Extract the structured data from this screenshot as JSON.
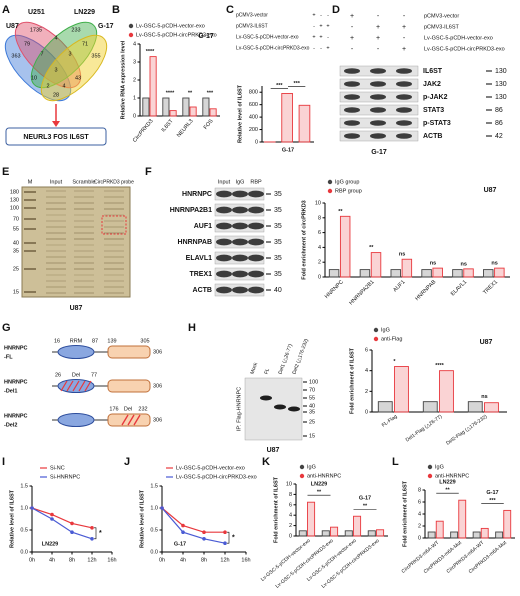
{
  "panel_labels": [
    "A",
    "B",
    "C",
    "D",
    "E",
    "F",
    "G",
    "H",
    "I",
    "J",
    "K",
    "L"
  ],
  "venn": {
    "sets": [
      "U87",
      "U251",
      "LN229",
      "G-17"
    ],
    "counts": [
      363,
      1735,
      233,
      355,
      79,
      4,
      71,
      10,
      43,
      28,
      7,
      3,
      4,
      2,
      3
    ],
    "result": "NEURL3 FOS IL6ST"
  },
  "blot_d": {
    "conditions": [
      {
        "label": "pCMV3-vector",
        "signs": [
          "+",
          "-",
          "-"
        ]
      },
      {
        "label": "pCMV3-IL6ST",
        "signs": [
          "-",
          "+",
          "+"
        ]
      },
      {
        "label": "Lv-GSC-5-pCDH-vector-exo",
        "signs": [
          "+",
          "+",
          "-"
        ]
      },
      {
        "label": "Lv-GSC-5-pCDH-circPRKD3-exo",
        "signs": [
          "-",
          "-",
          "+"
        ]
      }
    ],
    "rows": [
      {
        "name": "IL6ST",
        "marker": 130
      },
      {
        "name": "JAK2",
        "marker": 130
      },
      {
        "name": "p-JAK2",
        "marker": 130
      },
      {
        "name": "STAT3",
        "marker": 86
      },
      {
        "name": "p-STAT3",
        "marker": 86
      },
      {
        "name": "ACTB",
        "marker": 42
      }
    ],
    "caption": "G-17"
  },
  "gel_e": {
    "lanes": [
      "M",
      "Input",
      "Scramble",
      "CircPRKD3 probe"
    ],
    "markers": [
      180,
      130,
      100,
      70,
      55,
      40,
      35,
      25,
      15
    ],
    "caption": "U87"
  },
  "blot_f": {
    "lanes": [
      "Input",
      "IgG",
      "RBP"
    ],
    "rows": [
      {
        "name": "HNRNPC",
        "marker": 35
      },
      {
        "name": "HNRNPA2B1",
        "marker": 35
      },
      {
        "name": "AUF1",
        "marker": 35
      },
      {
        "name": "HNRNPAB",
        "marker": 35
      },
      {
        "name": "ELAVL1",
        "marker": 35
      },
      {
        "name": "TREX1",
        "marker": 35
      },
      {
        "name": "ACTB",
        "marker": 40
      }
    ]
  },
  "domains_g": {
    "constructs": [
      {
        "name": [
          "HNRNPC",
          "-FL"
        ],
        "labels": [
          16,
          "RRM",
          87,
          139,
          305
        ],
        "end": 306
      },
      {
        "name": [
          "HNRNPC",
          "-Del1"
        ],
        "labels": [
          26,
          "Del",
          77
        ],
        "end": 306
      },
      {
        "name": [
          "HNRNPC",
          "-Del2"
        ],
        "labels": [
          176,
          "Del",
          232
        ],
        "end": 306
      }
    ]
  },
  "blot_h": {
    "lanes": [
      "Mock",
      "FL",
      "Del1 (△26-77)",
      "Del2 (△176-232)"
    ],
    "side_label": "IP: Flag-HNRNPC",
    "markers": [
      100,
      70,
      55,
      40,
      35,
      25,
      15
    ],
    "caption": "U87"
  },
  "chart_data": [
    {
      "type": "bar",
      "title": "G-17",
      "ylabel": "Relative RNA expression level",
      "categories": [
        "CircPRKD3",
        "IL6ST",
        "NEURL3",
        "FOS"
      ],
      "series": [
        {
          "name": "Lv-GSC-5-pCDH-vector-exo",
          "color": "#444444",
          "values": [
            1,
            1,
            1,
            1
          ]
        },
        {
          "name": "Lv-GSC-5-pCDH-circPRKD3-exo",
          "color": "#e8383d",
          "values": [
            3.3,
            0.3,
            0.5,
            0.4
          ]
        }
      ],
      "ylim": [
        0,
        4
      ],
      "yticks": [
        0,
        1,
        2,
        3,
        4
      ],
      "significance": [
        "****",
        "****",
        "**",
        "***"
      ]
    },
    {
      "type": "bar",
      "ylabel": "Relative level of IL6ST",
      "xlabel": "G-17",
      "categories": [
        null,
        null,
        null
      ],
      "values": [
        1,
        780,
        590
      ],
      "color": "#e8383d",
      "ylim": [
        0,
        900
      ],
      "yticks": [
        0,
        200,
        400,
        600,
        800
      ],
      "significance": [
        "***",
        "***"
      ],
      "conditions": [
        {
          "label": "pCMV3-vector",
          "signs": [
            "+",
            "-",
            "-"
          ]
        },
        {
          "label": "pCMV3-IL6ST",
          "signs": [
            "-",
            "+",
            "+"
          ]
        },
        {
          "label": "Lv-GSC-5-pCDH-vector-exo",
          "signs": [
            "+",
            "+",
            "-"
          ]
        },
        {
          "label": "Lv-GSC-5-pCDH-circPRKD3-exo",
          "signs": [
            "-",
            "-",
            "+"
          ]
        }
      ]
    },
    {
      "type": "bar",
      "title": "U87",
      "ylabel": "Fold enrichment of circPRKD3",
      "categories": [
        "HNRNPC",
        "HNRNPA2B1",
        "AUF1",
        "HNRNPAB",
        "ELAVL1",
        "TREX1"
      ],
      "series": [
        {
          "name": "IgG group",
          "color": "#444444",
          "values": [
            1,
            1,
            1,
            1,
            1,
            1
          ]
        },
        {
          "name": "RBP group",
          "color": "#e8383d",
          "values": [
            8.2,
            3.3,
            2.4,
            1.2,
            1.1,
            1.2
          ]
        }
      ],
      "ylim": [
        0,
        10
      ],
      "yticks": [
        0,
        2,
        4,
        6,
        8,
        10
      ],
      "significance": [
        "**",
        "**",
        "ns",
        "ns",
        "ns",
        "ns"
      ]
    },
    {
      "type": "bar",
      "title": "U87",
      "ylabel": "Fold enrichment of IL6ST",
      "categories": [
        "FL-Flag",
        "Del1-Flag (△26-77)",
        "Del2-Flag (△176-232)"
      ],
      "series": [
        {
          "name": "IgG",
          "color": "#444444",
          "values": [
            1,
            1,
            1
          ]
        },
        {
          "name": "anti-Flag",
          "color": "#e8383d",
          "values": [
            4.4,
            4.0,
            0.9
          ]
        }
      ],
      "ylim": [
        0,
        6
      ],
      "yticks": [
        0,
        2,
        4,
        6
      ],
      "significance": [
        "*",
        "****",
        "ns"
      ]
    },
    {
      "type": "line",
      "title": "LN229",
      "ylabel": "Relative level of IL6ST",
      "x": [
        0,
        4,
        8,
        12
      ],
      "xlim": [
        0,
        16
      ],
      "xticks": [
        {
          "value": 0,
          "label": "0h"
        },
        {
          "value": 4,
          "label": "4h"
        },
        {
          "value": 8,
          "label": "8h"
        },
        {
          "value": 12,
          "label": "12h"
        },
        {
          "value": 16,
          "label": "16h"
        }
      ],
      "series": [
        {
          "name": "Si-NC",
          "color": "#e8383d",
          "values": [
            1,
            0.85,
            0.65,
            0.55
          ]
        },
        {
          "name": "Si-HNRNPC",
          "color": "#4a5bd4",
          "values": [
            1,
            0.75,
            0.45,
            0.3
          ]
        }
      ],
      "ylim": [
        0,
        1.5
      ],
      "yticks": [
        {
          "value": 0,
          "label": "0.0"
        },
        0.5,
        {
          "value": 1,
          "label": "1.0"
        },
        1.5
      ],
      "significance": "*"
    },
    {
      "type": "line",
      "title": "G-17",
      "ylabel": "Relative level of IL6ST",
      "x": [
        0,
        4,
        8,
        12
      ],
      "xlim": [
        0,
        16
      ],
      "xticks": [
        {
          "value": 0,
          "label": "0h"
        },
        {
          "value": 4,
          "label": "4h"
        },
        {
          "value": 8,
          "label": "8h"
        },
        {
          "value": 12,
          "label": "12h"
        },
        {
          "value": 16,
          "label": "16h"
        }
      ],
      "series": [
        {
          "name": "Lv-GSC-5-pCDH-vector-exo",
          "color": "#e8383d",
          "values": [
            1,
            0.6,
            0.45,
            0.45
          ]
        },
        {
          "name": "Lv-GSC-5-pCDH-circPRKD3-exo",
          "color": "#4a5bd4",
          "values": [
            1,
            0.45,
            0.3,
            0.2
          ]
        }
      ],
      "ylim": [
        0,
        1.5
      ],
      "yticks": [
        {
          "value": 0,
          "label": "0.0"
        },
        0.5,
        {
          "value": 1,
          "label": "1.0"
        },
        1.5
      ],
      "significance": "*"
    },
    {
      "type": "bar",
      "ylabel": "Fold enrichment of IL6ST",
      "categories": [
        "Lv-GSC-5-pCDH-vector-exo",
        "Lv-GSC-5-pCDH-circPRKD3-exo",
        "Lv-GSC-5-pCDH-vector-exo",
        "Lv-GSC-5-pCDH-circPRKD3-exo"
      ],
      "series": [
        {
          "name": "IgG",
          "color": "#444444",
          "values": [
            1,
            1,
            1,
            1
          ]
        },
        {
          "name": "anti-HNRNPC",
          "color": "#e8383d",
          "values": [
            6.5,
            1.7,
            3.8,
            1.2
          ]
        }
      ],
      "ylim": [
        0,
        10
      ],
      "yticks": [
        0,
        2,
        4,
        6,
        8,
        10
      ],
      "groups": [
        {
          "name": "LN229",
          "significance": "**"
        },
        {
          "name": "G-17",
          "significance": "**"
        }
      ]
    },
    {
      "type": "bar",
      "ylabel": "Fold enrichment of IL6ST",
      "categories": [
        "CircPRKD3-m6A-WT",
        "CircPRKD3-m6A-Mut",
        "CircPRKD3-m6A-WT",
        "CircPRKD3-m6A-Mut"
      ],
      "series": [
        {
          "name": "IgG",
          "color": "#444444",
          "values": [
            1,
            1,
            1,
            1
          ]
        },
        {
          "name": "anti-HNRNPC",
          "color": "#e8383d",
          "values": [
            2.8,
            6.3,
            1.6,
            4.6
          ]
        }
      ],
      "ylim": [
        0,
        8
      ],
      "yticks": [
        0,
        2,
        4,
        6,
        8
      ],
      "groups": [
        {
          "name": "LN229",
          "significance": "**"
        },
        {
          "name": "G-17",
          "significance": "***"
        }
      ]
    }
  ]
}
